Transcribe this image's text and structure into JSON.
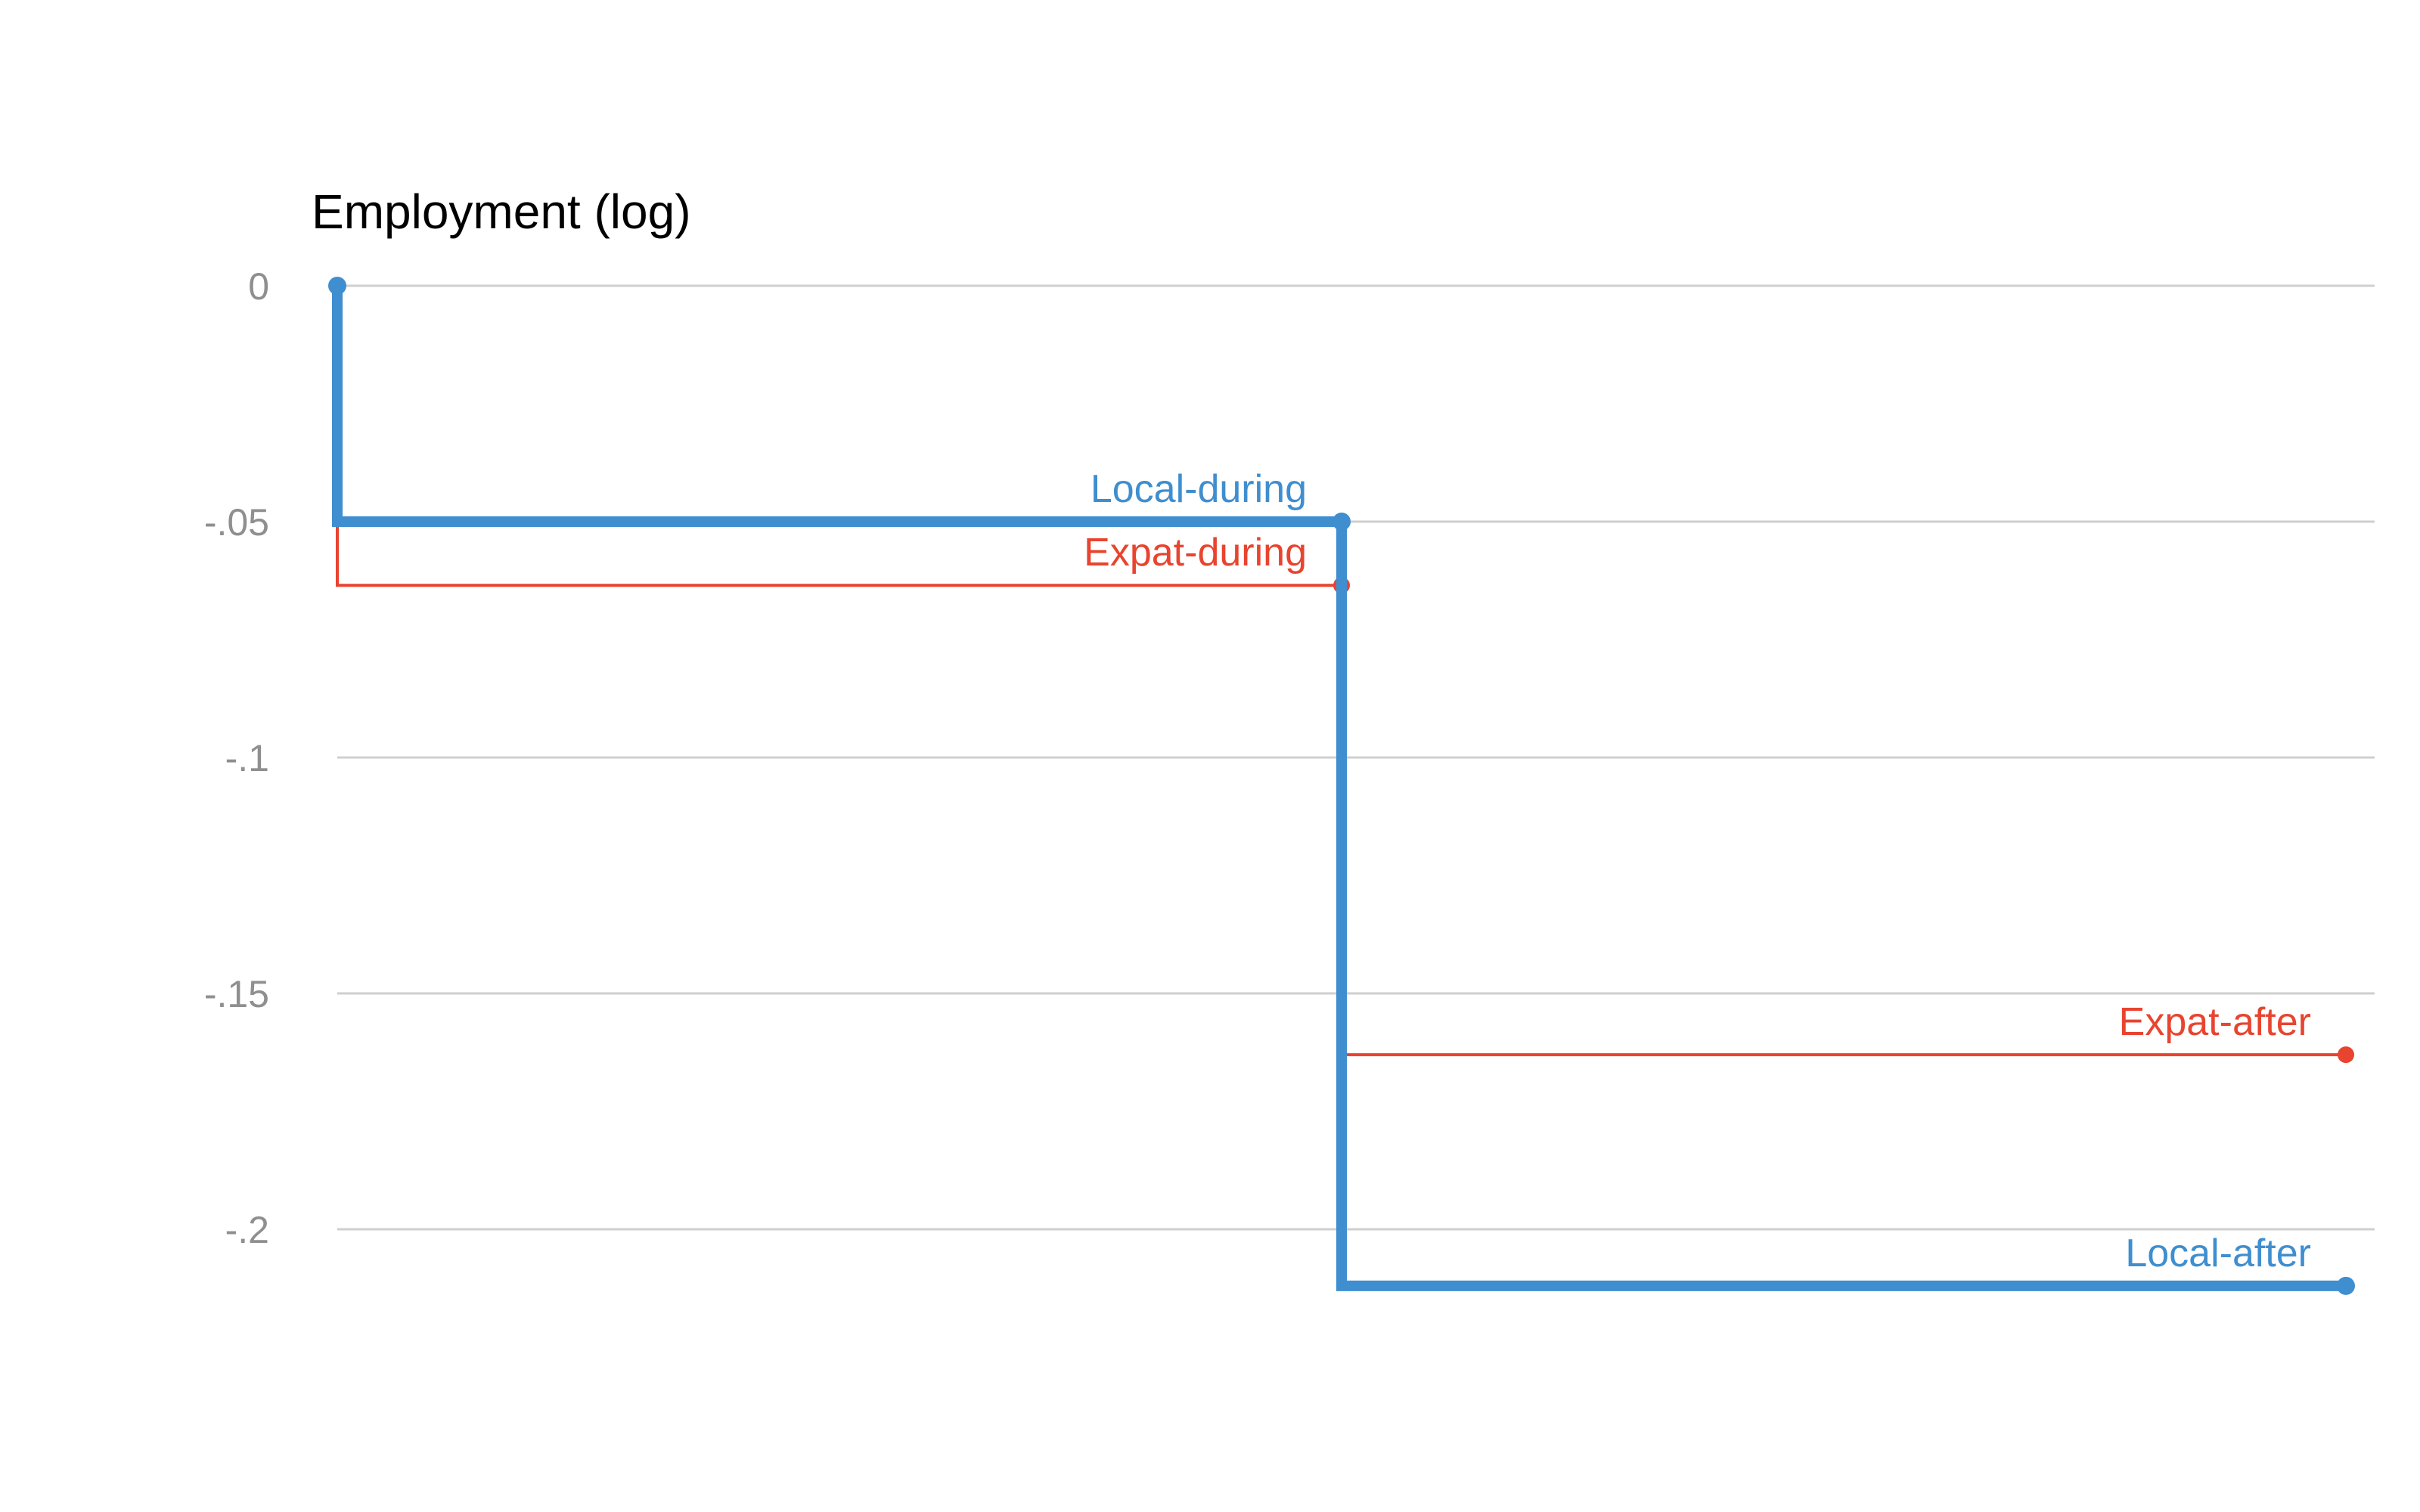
{
  "chart_data": {
    "type": "line",
    "ylabel": "Employment (log)",
    "xlabel": "",
    "title": "",
    "ylim": [
      -0.245,
      0
    ],
    "xlim": [
      0,
      2
    ],
    "y_ticks": [
      {
        "value": 0,
        "label": "0"
      },
      {
        "value": -0.05,
        "label": "-.05"
      },
      {
        "value": -0.1,
        "label": "-.1"
      },
      {
        "value": -0.15,
        "label": "-.15"
      },
      {
        "value": -0.2,
        "label": "-.2"
      }
    ],
    "grid": true,
    "legend": "none",
    "series": [
      {
        "color": "#e8442f",
        "step": true,
        "points": [
          {
            "x": 0,
            "y": 0
          },
          {
            "x": 1,
            "y": -0.0635,
            "label": "Expat-during"
          },
          {
            "x": 2,
            "y": -0.163,
            "label": "Expat-after"
          }
        ]
      },
      {
        "color": "#3f8ecf",
        "step": true,
        "points": [
          {
            "x": 0,
            "y": 0
          },
          {
            "x": 1,
            "y": -0.05,
            "label": "Local-during"
          },
          {
            "x": 2,
            "y": -0.212,
            "label": "Local-after"
          }
        ]
      }
    ]
  }
}
